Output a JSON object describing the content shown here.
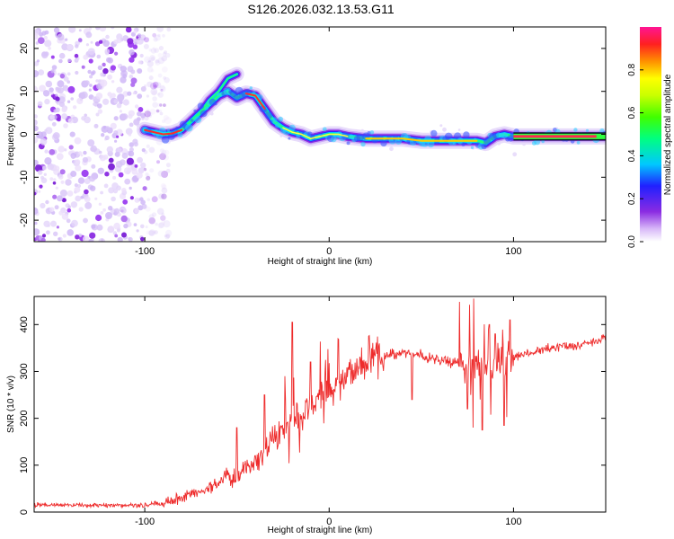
{
  "title": "S126.2026.032.13.53.G11",
  "colors": {
    "snr_line": "#ee2b2b",
    "axes": "#000000",
    "speckle_light": "#d8c4f8",
    "speckle_dark": "#8a2be2"
  },
  "chart_data": [
    {
      "type": "heatmap",
      "xlabel": "Height of straight line (km)",
      "ylabel": "Frequency (Hz)",
      "xlim": [
        -160,
        150
      ],
      "ylim": [
        -25,
        25
      ],
      "xticks": [
        -100,
        0,
        100
      ],
      "xtick_labels": [
        "-100",
        "0",
        "100"
      ],
      "yticks": [
        -20,
        -10,
        0,
        10,
        20
      ],
      "ytick_labels": [
        "-20",
        "-10",
        "0",
        "10",
        "20"
      ],
      "grid": false,
      "ridge_x": [
        -100,
        -95,
        -90,
        -85,
        -80,
        -75,
        -70,
        -65,
        -60,
        -55,
        -50,
        -45,
        -40,
        -35,
        -30,
        -25,
        -20,
        -15,
        -10,
        -5,
        0,
        5,
        10,
        20,
        30,
        40,
        50,
        60,
        70,
        80,
        85,
        90,
        95,
        100,
        110,
        120,
        130,
        140,
        150
      ],
      "ridge_y": [
        1,
        0.5,
        0,
        0.2,
        1,
        3,
        5,
        7,
        9,
        10,
        8.5,
        9.5,
        9,
        6,
        3,
        1.5,
        0.5,
        0,
        -1,
        -0.5,
        0,
        0,
        -0.5,
        -1,
        -1,
        -1,
        -1.5,
        -1.5,
        -1.5,
        -1.5,
        -2,
        -0.5,
        0,
        -0.5,
        -0.5,
        -0.5,
        -0.5,
        -0.5,
        -0.5
      ],
      "branch_x": [
        -70,
        -65,
        -60,
        -55,
        -50
      ],
      "branch_y": [
        5,
        8,
        10,
        13,
        14
      ],
      "noise_region_x": [
        -160,
        -95
      ],
      "colorbar": {
        "label": "Normalized spectral amplitude",
        "range": [
          0,
          1
        ],
        "ticks": [
          0,
          0.2,
          0.4,
          0.6,
          0.8
        ],
        "tick_labels": [
          "0.0",
          "0.2",
          "0.4",
          "0.6",
          "0.8"
        ]
      }
    },
    {
      "type": "line",
      "xlabel": "Height of straight line (km)",
      "ylabel": "SNR (10 * v/v)",
      "xlim": [
        -160,
        150
      ],
      "ylim": [
        0,
        460
      ],
      "xticks": [
        -100,
        0,
        100
      ],
      "xtick_labels": [
        "-100",
        "0",
        "100"
      ],
      "yticks": [
        0,
        100,
        200,
        300,
        400
      ],
      "ytick_labels": [
        "0",
        "100",
        "200",
        "300",
        "400"
      ],
      "grid": false,
      "envelope_x": [
        -160,
        -100,
        -90,
        -80,
        -70,
        -60,
        -50,
        -40,
        -30,
        -20,
        -10,
        0,
        10,
        20,
        30,
        40,
        50,
        60,
        70,
        80,
        90,
        100,
        110,
        120,
        130,
        140,
        150
      ],
      "envelope_y": [
        15,
        15,
        20,
        30,
        45,
        60,
        80,
        110,
        150,
        190,
        230,
        260,
        290,
        320,
        335,
        340,
        335,
        325,
        320,
        320,
        320,
        330,
        340,
        350,
        355,
        360,
        370
      ],
      "spikes": [
        {
          "x": -50,
          "y": 180
        },
        {
          "x": -35,
          "y": 250
        },
        {
          "x": -20,
          "y": 405
        },
        {
          "x": -10,
          "y": 320
        },
        {
          "x": -2,
          "y": 300
        },
        {
          "x": 5,
          "y": 370
        },
        {
          "x": 75,
          "y": 405
        },
        {
          "x": 83,
          "y": 458
        },
        {
          "x": 87,
          "y": 400
        },
        {
          "x": 90,
          "y": 380
        },
        {
          "x": 98,
          "y": 410
        }
      ],
      "dips": [
        {
          "x": 45,
          "y": 240
        },
        {
          "x": 75,
          "y": 220
        },
        {
          "x": 83,
          "y": 175
        },
        {
          "x": 95,
          "y": 185
        }
      ]
    }
  ]
}
